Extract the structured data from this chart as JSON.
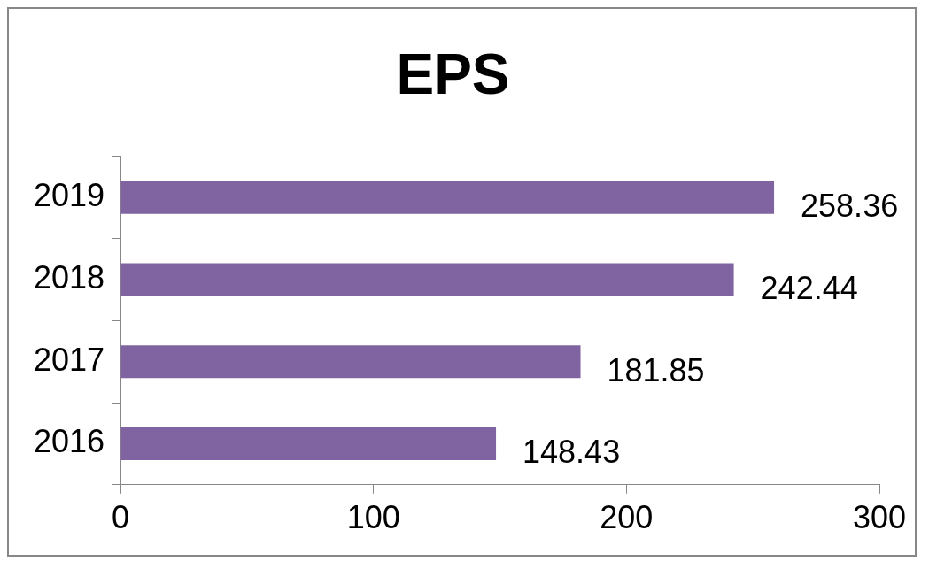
{
  "chart_data": {
    "type": "bar",
    "orientation": "horizontal",
    "title": "EPS",
    "categories": [
      "2019",
      "2018",
      "2017",
      "2016"
    ],
    "values": [
      258.36,
      242.44,
      181.85,
      148.43
    ],
    "color": "#8064a2",
    "xlim": [
      0,
      300
    ],
    "xticks": [
      0,
      100,
      200,
      300
    ],
    "data_labels": true
  }
}
